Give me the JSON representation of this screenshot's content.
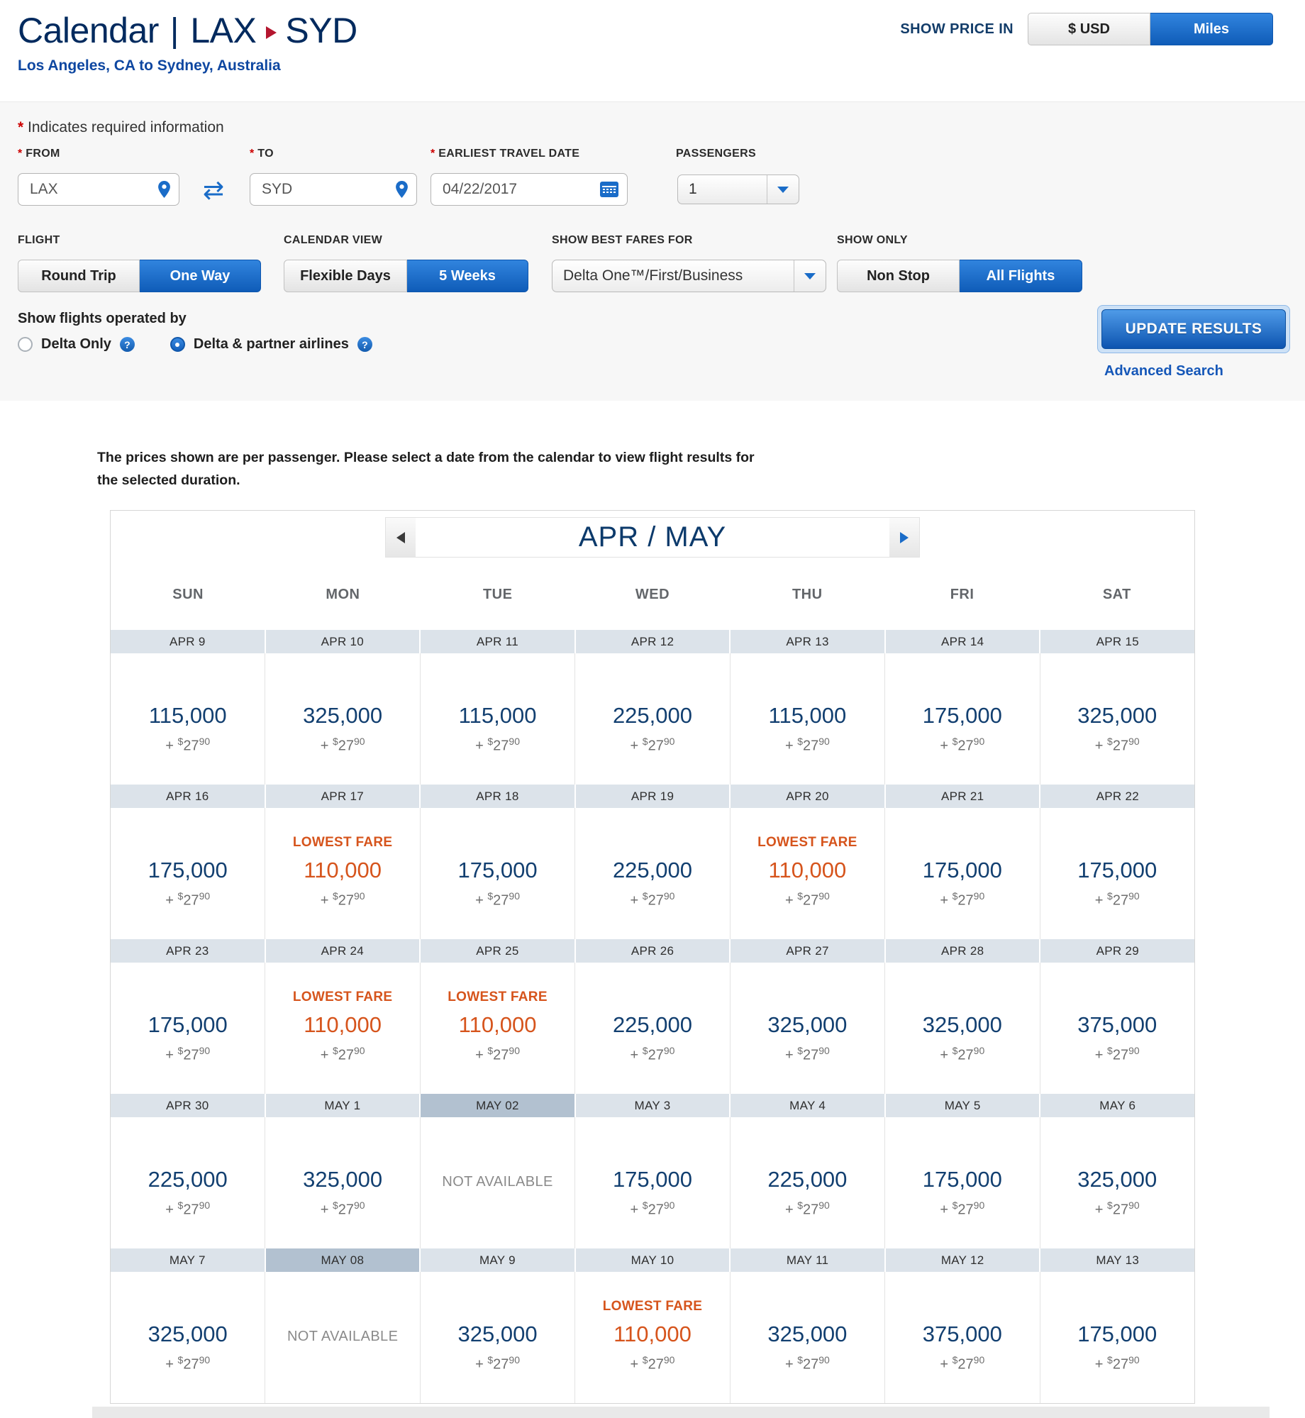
{
  "header": {
    "title": {
      "section": "Calendar",
      "divider": "|",
      "origin": "LAX",
      "destination": "SYD"
    },
    "subtitle": "Los Angeles, CA to Sydney, Australia",
    "show_price_in": {
      "label": "SHOW PRICE IN",
      "options": [
        {
          "label": "$ USD",
          "selected": false
        },
        {
          "label": "Miles",
          "selected": true
        }
      ]
    }
  },
  "form": {
    "required_marker": "*",
    "required_note": "Indicates required information",
    "from": {
      "label": "FROM",
      "value": "LAX"
    },
    "to": {
      "label": "TO",
      "value": "SYD"
    },
    "date": {
      "label": "EARLIEST TRAVEL DATE",
      "value": "04/22/2017"
    },
    "passengers": {
      "label": "PASSENGERS",
      "value": "1"
    },
    "flight": {
      "label": "FLIGHT",
      "options": [
        {
          "label": "Round Trip",
          "selected": false
        },
        {
          "label": "One Way",
          "selected": true
        }
      ]
    },
    "calendar_view": {
      "label": "CALENDAR VIEW",
      "options": [
        {
          "label": "Flexible Days",
          "selected": false
        },
        {
          "label": "5 Weeks",
          "selected": true
        }
      ]
    },
    "best_fares": {
      "label": "SHOW BEST FARES FOR",
      "value": "Delta One™/First/Business"
    },
    "show_only": {
      "label": "SHOW ONLY",
      "options": [
        {
          "label": "Non Stop",
          "selected": false
        },
        {
          "label": "All Flights",
          "selected": true
        }
      ]
    },
    "operated_by": {
      "label": "Show flights operated by",
      "options": [
        {
          "label": "Delta Only",
          "selected": false
        },
        {
          "label": "Delta & partner airlines",
          "selected": true
        }
      ]
    },
    "update_button": "UPDATE RESULTS",
    "advanced_search": "Advanced Search"
  },
  "note": {
    "line1": "The prices shown are per passenger. Please select a date from the calendar to view flight results for",
    "line2": "the selected duration."
  },
  "icons": {
    "swap": "⇄",
    "help": "?"
  },
  "calendar": {
    "month_label": "APR / MAY",
    "day_headers": [
      "SUN",
      "MON",
      "TUE",
      "WED",
      "THU",
      "FRI",
      "SAT"
    ],
    "lowest_fare_label": "LOWEST FARE",
    "not_available_label": "NOT AVAILABLE",
    "fees": {
      "plus": "+",
      "currency": "$",
      "amount": "27",
      "cents": "90"
    },
    "weeks": [
      {
        "cells": [
          {
            "date": "APR 9",
            "miles": "115,000"
          },
          {
            "date": "APR 10",
            "miles": "325,000"
          },
          {
            "date": "APR 11",
            "miles": "115,000"
          },
          {
            "date": "APR 12",
            "miles": "225,000"
          },
          {
            "date": "APR 13",
            "miles": "115,000"
          },
          {
            "date": "APR 14",
            "miles": "175,000"
          },
          {
            "date": "APR 15",
            "miles": "325,000"
          }
        ]
      },
      {
        "cells": [
          {
            "date": "APR 16",
            "miles": "175,000"
          },
          {
            "date": "APR 17",
            "miles": "110,000",
            "lowest": true
          },
          {
            "date": "APR 18",
            "miles": "175,000"
          },
          {
            "date": "APR 19",
            "miles": "225,000"
          },
          {
            "date": "APR 20",
            "miles": "110,000",
            "lowest": true
          },
          {
            "date": "APR 21",
            "miles": "175,000"
          },
          {
            "date": "APR 22",
            "miles": "175,000"
          }
        ]
      },
      {
        "cells": [
          {
            "date": "APR 23",
            "miles": "175,000"
          },
          {
            "date": "APR 24",
            "miles": "110,000",
            "lowest": true
          },
          {
            "date": "APR 25",
            "miles": "110,000",
            "lowest": true
          },
          {
            "date": "APR 26",
            "miles": "225,000"
          },
          {
            "date": "APR 27",
            "miles": "325,000"
          },
          {
            "date": "APR 28",
            "miles": "325,000"
          },
          {
            "date": "APR 29",
            "miles": "375,000"
          }
        ]
      },
      {
        "cells": [
          {
            "date": "APR 30",
            "miles": "225,000"
          },
          {
            "date": "MAY 1",
            "miles": "325,000"
          },
          {
            "date": "MAY 02",
            "selected": true,
            "not_available": true
          },
          {
            "date": "MAY 3",
            "miles": "175,000"
          },
          {
            "date": "MAY 4",
            "miles": "225,000"
          },
          {
            "date": "MAY 5",
            "miles": "175,000"
          },
          {
            "date": "MAY 6",
            "miles": "325,000"
          }
        ]
      },
      {
        "cells": [
          {
            "date": "MAY 7",
            "miles": "325,000"
          },
          {
            "date": "MAY 08",
            "selected": true,
            "not_available": true
          },
          {
            "date": "MAY 9",
            "miles": "325,000"
          },
          {
            "date": "MAY 10",
            "miles": "110,000",
            "lowest": true
          },
          {
            "date": "MAY 11",
            "miles": "325,000"
          },
          {
            "date": "MAY 12",
            "miles": "375,000"
          },
          {
            "date": "MAY 13",
            "miles": "175,000"
          }
        ]
      }
    ]
  },
  "colors": {
    "delta_navy": "#012a5e",
    "delta_blue": "#1360bd",
    "lowest_orange": "#d6541c",
    "price_navy": "#123f70",
    "date_bar_bg": "#dce3ea",
    "selected_date_bg": "#b2c1d0"
  }
}
